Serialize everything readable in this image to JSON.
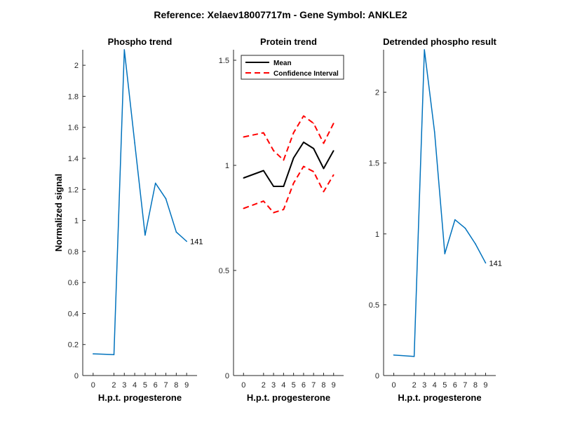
{
  "figure": {
    "suptitle": "Reference:  Xelaev18007717m - Gene Symbol:  ANKLE2"
  },
  "colors": {
    "blue": "#0072BD",
    "black": "#000000",
    "red": "#FF0000",
    "axis": "#262626"
  },
  "chart_data": [
    {
      "type": "line",
      "title": "Phospho trend",
      "xlabel": "H.p.t. progesterone",
      "ylabel": "Normalized signal",
      "xlim": [
        -1,
        10
      ],
      "ylim": [
        0,
        2.1
      ],
      "xticks": [
        0,
        2,
        3,
        4,
        5,
        6,
        7,
        8,
        9
      ],
      "xtick_labels": [
        "0",
        "2",
        "3",
        "4",
        "5",
        "6",
        "7",
        "8",
        "9"
      ],
      "yticks": [
        0,
        0.2,
        0.4,
        0.6,
        0.8,
        1,
        1.2,
        1.4,
        1.6,
        1.8,
        2
      ],
      "ytick_labels": [
        "0",
        "0.2",
        "0.4",
        "0.6",
        "0.8",
        "1",
        "1.2",
        "1.4",
        "1.6",
        "1.8",
        "2"
      ],
      "series": [
        {
          "name": "phospho",
          "color": "#0072BD",
          "x": [
            0,
            2,
            3,
            4,
            5,
            6,
            7,
            8,
            9
          ],
          "values": [
            0.14,
            0.135,
            2.1,
            1.5,
            0.905,
            1.24,
            1.14,
            0.925,
            0.865
          ]
        }
      ],
      "annotation": {
        "text": "141",
        "x": 9,
        "y": 0.865
      }
    },
    {
      "type": "line",
      "title": "Protein trend",
      "xlabel": "H.p.t. progesterone",
      "ylabel": "",
      "xlim": [
        -1,
        10
      ],
      "ylim": [
        0,
        1.55
      ],
      "xticks": [
        0,
        2,
        3,
        4,
        5,
        6,
        7,
        8,
        9
      ],
      "xtick_labels": [
        "0",
        "2",
        "3",
        "4",
        "5",
        "6",
        "7",
        "8",
        "9"
      ],
      "yticks": [
        0,
        0.5,
        1,
        1.5
      ],
      "ytick_labels": [
        "0",
        "0.5",
        "1",
        "1.5"
      ],
      "legend": {
        "placement": "top-left",
        "entries": [
          "Mean",
          "Confidence Interval"
        ]
      },
      "series": [
        {
          "name": "Mean",
          "color": "#000000",
          "style": "solid",
          "x": [
            0,
            2,
            3,
            4,
            5,
            6,
            7,
            8,
            9
          ],
          "values": [
            0.94,
            0.975,
            0.9,
            0.9,
            1.035,
            1.11,
            1.08,
            0.985,
            1.07
          ]
        },
        {
          "name": "Confidence Interval",
          "color": "#FF0000",
          "style": "dashed",
          "x": [
            0,
            2,
            3,
            4,
            5,
            6,
            7,
            8,
            9
          ],
          "values": [
            1.135,
            1.155,
            1.07,
            1.025,
            1.155,
            1.235,
            1.2,
            1.105,
            1.2
          ]
        },
        {
          "name": "Confidence Interval (lower)",
          "color": "#FF0000",
          "style": "dashed",
          "x": [
            0,
            2,
            3,
            4,
            5,
            6,
            7,
            8,
            9
          ],
          "values": [
            0.795,
            0.83,
            0.775,
            0.79,
            0.915,
            0.995,
            0.97,
            0.875,
            0.955
          ]
        }
      ]
    },
    {
      "type": "line",
      "title": "Detrended phospho result",
      "xlabel": "H.p.t. progesterone",
      "ylabel": "",
      "xlim": [
        -1,
        10
      ],
      "ylim": [
        0,
        2.3
      ],
      "xticks": [
        0,
        2,
        3,
        4,
        5,
        6,
        7,
        8,
        9
      ],
      "xtick_labels": [
        "0",
        "2",
        "3",
        "4",
        "5",
        "6",
        "7",
        "8",
        "9"
      ],
      "yticks": [
        0,
        0.5,
        1,
        1.5,
        2
      ],
      "ytick_labels": [
        "0",
        "0.5",
        "1",
        "1.5",
        "2"
      ],
      "series": [
        {
          "name": "detrended",
          "color": "#0072BD",
          "x": [
            0,
            2,
            3,
            4,
            5,
            6,
            7,
            8,
            9
          ],
          "values": [
            0.145,
            0.135,
            2.3,
            1.72,
            0.86,
            1.1,
            1.04,
            0.93,
            0.795
          ]
        }
      ],
      "annotation": {
        "text": "141",
        "x": 9,
        "y": 0.795
      }
    }
  ]
}
